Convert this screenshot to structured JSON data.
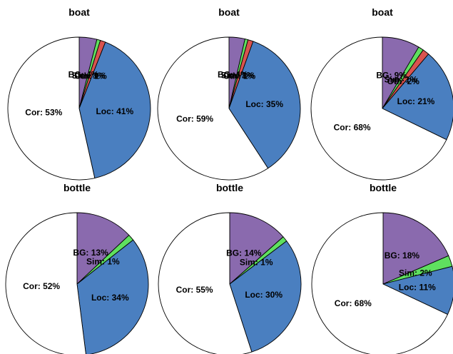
{
  "colors": {
    "BG": "#8a6aae",
    "Sim": "#5fe05f",
    "Oth": "#d9534f",
    "Loc": "#4a7fc0",
    "Cor": "#ffffff"
  },
  "chart_data": [
    {
      "type": "pie",
      "title": "boat",
      "slices": [
        {
          "cat": "BG",
          "label": "BG: 4%",
          "value": 4
        },
        {
          "cat": "Sim",
          "label": "Sim: 1%",
          "value": 0.8
        },
        {
          "cat": "Oth",
          "label": "Oth: 1%",
          "value": 1.2
        },
        {
          "cat": "Loc",
          "label": "Loc: 41%",
          "value": 40.5
        },
        {
          "cat": "Cor",
          "label": "Cor: 53%",
          "value": 53.5
        }
      ]
    },
    {
      "type": "pie",
      "title": "boat",
      "slices": [
        {
          "cat": "BG",
          "label": "BG: 4%",
          "value": 3.6
        },
        {
          "cat": "Sim",
          "label": "Sim: 1%",
          "value": 0.7
        },
        {
          "cat": "Oth",
          "label": "Oth: 1%",
          "value": 1.2
        },
        {
          "cat": "Loc",
          "label": "Loc: 35%",
          "value": 35.3
        },
        {
          "cat": "Cor",
          "label": "Cor: 59%",
          "value": 59.2
        }
      ]
    },
    {
      "type": "pie",
      "title": "boat",
      "slices": [
        {
          "cat": "BG",
          "label": "BG: 9%",
          "value": 8.5
        },
        {
          "cat": "Sim",
          "label": "Sim: 1%",
          "value": 1.2
        },
        {
          "cat": "Oth",
          "label": "Oth: 2%",
          "value": 1.5
        },
        {
          "cat": "Loc",
          "label": "Loc: 21%",
          "value": 21
        },
        {
          "cat": "Cor",
          "label": "Cor: 68%",
          "value": 67.8
        }
      ]
    },
    {
      "type": "pie",
      "title": "bottle",
      "slices": [
        {
          "cat": "BG",
          "label": "BG: 13%",
          "value": 13
        },
        {
          "cat": "Sim",
          "label": "Sim: 1%",
          "value": 1.4
        },
        {
          "cat": "Loc",
          "label": "Loc: 34%",
          "value": 33.6
        },
        {
          "cat": "Cor",
          "label": "Cor: 52%",
          "value": 52
        }
      ]
    },
    {
      "type": "pie",
      "title": "bottle",
      "slices": [
        {
          "cat": "BG",
          "label": "BG: 14%",
          "value": 13.5
        },
        {
          "cat": "Sim",
          "label": "Sim: 1%",
          "value": 1.2
        },
        {
          "cat": "Loc",
          "label": "Loc: 30%",
          "value": 30.3
        },
        {
          "cat": "Cor",
          "label": "Cor: 55%",
          "value": 55
        }
      ]
    },
    {
      "type": "pie",
      "title": "bottle",
      "slices": [
        {
          "cat": "BG",
          "label": "BG: 18%",
          "value": 18.5
        },
        {
          "cat": "Sim",
          "label": "Sim: 2%",
          "value": 2.5
        },
        {
          "cat": "Loc",
          "label": "Loc: 11%",
          "value": 11
        },
        {
          "cat": "Cor",
          "label": "Cor: 68%",
          "value": 68
        }
      ]
    }
  ]
}
